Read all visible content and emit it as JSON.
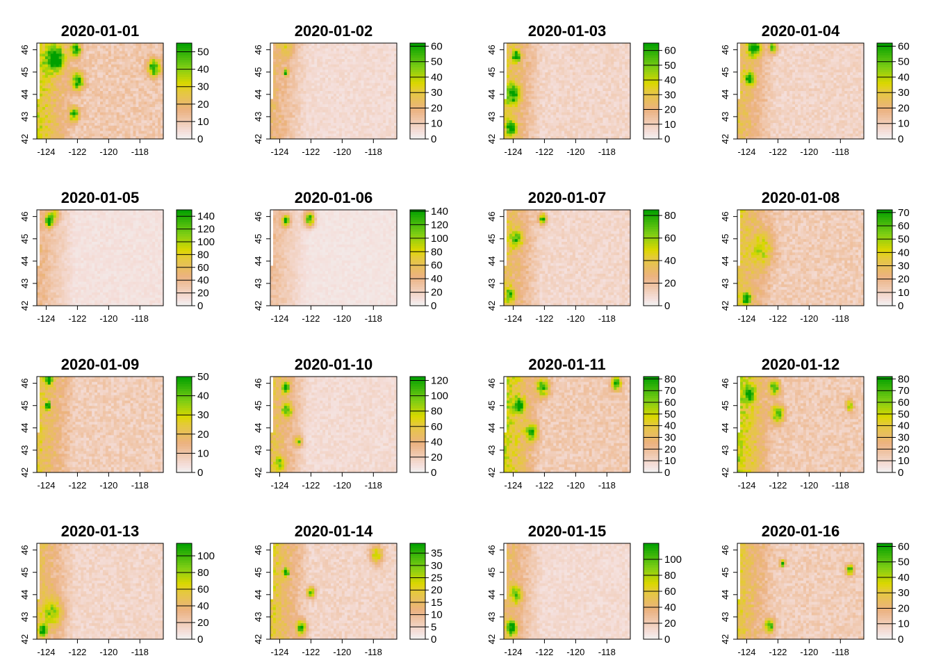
{
  "figure": {
    "x_ticks": [
      "-124",
      "-122",
      "-120",
      "-118"
    ],
    "y_ticks": [
      "42",
      "43",
      "44",
      "45",
      "46"
    ]
  },
  "chart_data": [
    {
      "type": "heatmap",
      "title": "2020-01-01",
      "xlim": [
        -124.6,
        -116.5
      ],
      "ylim": [
        42,
        46.3
      ],
      "colorbar": {
        "min": 0,
        "max": 55,
        "ticks": [
          0,
          10,
          20,
          30,
          40,
          50
        ],
        "labels": [
          "0",
          "10",
          "20",
          "30",
          "40",
          "50"
        ]
      },
      "hotspots": [
        {
          "lon": -123.4,
          "lat": 45.6,
          "value": 45,
          "spread": 0.7
        },
        {
          "lon": -122.1,
          "lat": 46.0,
          "value": 50,
          "spread": 0.4
        },
        {
          "lon": -122.0,
          "lat": 44.6,
          "value": 45,
          "spread": 0.5
        },
        {
          "lon": -122.2,
          "lat": 43.1,
          "value": 40,
          "spread": 0.4
        },
        {
          "lon": -117.1,
          "lat": 45.2,
          "value": 45,
          "spread": 0.5
        }
      ],
      "base": 10,
      "west_strip_value": 20
    },
    {
      "type": "heatmap",
      "title": "2020-01-02",
      "xlim": [
        -124.6,
        -116.5
      ],
      "ylim": [
        42,
        46.3
      ],
      "colorbar": {
        "min": 0,
        "max": 62,
        "ticks": [
          0,
          10,
          20,
          30,
          40,
          50,
          60
        ],
        "labels": [
          "0",
          "10",
          "20",
          "30",
          "40",
          "50",
          "60"
        ]
      },
      "hotspots": [
        {
          "lon": -123.6,
          "lat": 45.0,
          "value": 45,
          "spread": 0.2
        },
        {
          "lon": -123.5,
          "lat": 46.1,
          "value": 15,
          "spread": 0.6
        }
      ],
      "base": 6,
      "west_strip_value": 14
    },
    {
      "type": "heatmap",
      "title": "2020-01-03",
      "xlim": [
        -124.6,
        -116.5
      ],
      "ylim": [
        42,
        46.3
      ],
      "colorbar": {
        "min": 0,
        "max": 65,
        "ticks": [
          0,
          10,
          20,
          30,
          40,
          50,
          60
        ],
        "labels": [
          "0",
          "10",
          "20",
          "30",
          "40",
          "50",
          "60"
        ]
      },
      "hotspots": [
        {
          "lon": -123.8,
          "lat": 45.7,
          "value": 55,
          "spread": 0.3
        },
        {
          "lon": -124.0,
          "lat": 44.0,
          "value": 40,
          "spread": 0.6
        },
        {
          "lon": -124.1,
          "lat": 42.5,
          "value": 55,
          "spread": 0.4
        }
      ],
      "base": 8,
      "west_strip_value": 20
    },
    {
      "type": "heatmap",
      "title": "2020-01-04",
      "xlim": [
        -124.6,
        -116.5
      ],
      "ylim": [
        42,
        46.3
      ],
      "colorbar": {
        "min": 0,
        "max": 62,
        "ticks": [
          0,
          10,
          20,
          30,
          40,
          50,
          60
        ],
        "labels": [
          "0",
          "10",
          "20",
          "30",
          "40",
          "50",
          "60"
        ]
      },
      "hotspots": [
        {
          "lon": -123.5,
          "lat": 46.1,
          "value": 50,
          "spread": 0.5
        },
        {
          "lon": -122.3,
          "lat": 46.1,
          "value": 50,
          "spread": 0.3
        },
        {
          "lon": -123.8,
          "lat": 44.7,
          "value": 40,
          "spread": 0.4
        }
      ],
      "base": 8,
      "west_strip_value": 18
    },
    {
      "type": "heatmap",
      "title": "2020-01-05",
      "xlim": [
        -124.6,
        -116.5
      ],
      "ylim": [
        42,
        46.3
      ],
      "colorbar": {
        "min": 0,
        "max": 150,
        "ticks": [
          0,
          20,
          40,
          60,
          80,
          100,
          120,
          140
        ],
        "labels": [
          "0",
          "20",
          "40",
          "60",
          "80",
          "100",
          "120",
          "140"
        ]
      },
      "hotspots": [
        {
          "lon": -123.8,
          "lat": 45.8,
          "value": 140,
          "spread": 0.3
        },
        {
          "lon": -123.5,
          "lat": 46.1,
          "value": 60,
          "spread": 0.4
        }
      ],
      "base": 10,
      "west_strip_value": 30
    },
    {
      "type": "heatmap",
      "title": "2020-01-06",
      "xlim": [
        -124.6,
        -116.5
      ],
      "ylim": [
        42,
        46.3
      ],
      "colorbar": {
        "min": 0,
        "max": 142,
        "ticks": [
          0,
          20,
          40,
          60,
          80,
          100,
          120,
          140
        ],
        "labels": [
          "0",
          "20",
          "40",
          "60",
          "80",
          "100",
          "120",
          "140"
        ]
      },
      "hotspots": [
        {
          "lon": -123.6,
          "lat": 45.8,
          "value": 110,
          "spread": 0.3
        },
        {
          "lon": -122.1,
          "lat": 45.9,
          "value": 130,
          "spread": 0.4
        }
      ],
      "base": 8,
      "west_strip_value": 25
    },
    {
      "type": "heatmap",
      "title": "2020-01-07",
      "xlim": [
        -124.6,
        -116.5
      ],
      "ylim": [
        42,
        46.3
      ],
      "colorbar": {
        "min": 0,
        "max": 85,
        "ticks": [
          0,
          20,
          40,
          60,
          80
        ],
        "labels": [
          "0",
          "20",
          "40",
          "60",
          "80"
        ]
      },
      "hotspots": [
        {
          "lon": -122.1,
          "lat": 45.9,
          "value": 70,
          "spread": 0.3
        },
        {
          "lon": -123.8,
          "lat": 45.0,
          "value": 45,
          "spread": 0.5
        },
        {
          "lon": -124.2,
          "lat": 42.5,
          "value": 45,
          "spread": 0.4
        }
      ],
      "base": 10,
      "west_strip_value": 25
    },
    {
      "type": "heatmap",
      "title": "2020-01-08",
      "xlim": [
        -124.6,
        -116.5
      ],
      "ylim": [
        42,
        46.3
      ],
      "colorbar": {
        "min": 0,
        "max": 72,
        "ticks": [
          0,
          10,
          20,
          30,
          40,
          50,
          60,
          70
        ],
        "labels": [
          "0",
          "10",
          "20",
          "30",
          "40",
          "50",
          "60",
          "70"
        ]
      },
      "hotspots": [
        {
          "lon": -124.0,
          "lat": 42.3,
          "value": 65,
          "spread": 0.3
        },
        {
          "lon": -123.0,
          "lat": 44.5,
          "value": 25,
          "spread": 1.0
        }
      ],
      "base": 12,
      "west_strip_value": 20
    },
    {
      "type": "heatmap",
      "title": "2020-01-09",
      "xlim": [
        -124.6,
        -116.5
      ],
      "ylim": [
        42,
        46.3
      ],
      "colorbar": {
        "min": 0,
        "max": 50,
        "ticks": [
          0,
          10,
          20,
          30,
          40,
          50
        ],
        "labels": [
          "0",
          "10",
          "20",
          "30",
          "40",
          "50"
        ]
      },
      "hotspots": [
        {
          "lon": -123.8,
          "lat": 46.2,
          "value": 45,
          "spread": 0.3
        },
        {
          "lon": -123.9,
          "lat": 45.0,
          "value": 45,
          "spread": 0.2
        }
      ],
      "base": 8,
      "west_strip_value": 15
    },
    {
      "type": "heatmap",
      "title": "2020-01-10",
      "xlim": [
        -124.6,
        -116.5
      ],
      "ylim": [
        42,
        46.3
      ],
      "colorbar": {
        "min": 0,
        "max": 125,
        "ticks": [
          0,
          20,
          40,
          60,
          80,
          100,
          120
        ],
        "labels": [
          "0",
          "20",
          "40",
          "60",
          "80",
          "100",
          "120"
        ]
      },
      "hotspots": [
        {
          "lon": -123.6,
          "lat": 45.8,
          "value": 100,
          "spread": 0.3
        },
        {
          "lon": -123.5,
          "lat": 44.8,
          "value": 80,
          "spread": 0.4
        },
        {
          "lon": -122.8,
          "lat": 43.4,
          "value": 70,
          "spread": 0.3
        },
        {
          "lon": -124.0,
          "lat": 42.4,
          "value": 50,
          "spread": 0.4
        }
      ],
      "base": 12,
      "west_strip_value": 40
    },
    {
      "type": "heatmap",
      "title": "2020-01-11",
      "xlim": [
        -124.6,
        -116.5
      ],
      "ylim": [
        42,
        46.3
      ],
      "colorbar": {
        "min": 0,
        "max": 82,
        "ticks": [
          0,
          10,
          20,
          30,
          40,
          50,
          60,
          70,
          80
        ],
        "labels": [
          "0",
          "10",
          "20",
          "30",
          "40",
          "50",
          "60",
          "70",
          "80"
        ]
      },
      "hotspots": [
        {
          "lon": -122.1,
          "lat": 45.8,
          "value": 60,
          "spread": 0.5
        },
        {
          "lon": -123.6,
          "lat": 45.0,
          "value": 55,
          "spread": 0.4
        },
        {
          "lon": -122.8,
          "lat": 43.8,
          "value": 50,
          "spread": 0.5
        },
        {
          "lon": -117.4,
          "lat": 46.0,
          "value": 60,
          "spread": 0.4
        }
      ],
      "base": 14,
      "west_strip_value": 35
    },
    {
      "type": "heatmap",
      "title": "2020-01-12",
      "xlim": [
        -124.6,
        -116.5
      ],
      "ylim": [
        42,
        46.3
      ],
      "colorbar": {
        "min": 0,
        "max": 82,
        "ticks": [
          0,
          10,
          20,
          30,
          40,
          50,
          60,
          70,
          80
        ],
        "labels": [
          "0",
          "10",
          "20",
          "30",
          "40",
          "50",
          "60",
          "70",
          "80"
        ]
      },
      "hotspots": [
        {
          "lon": -122.2,
          "lat": 45.8,
          "value": 65,
          "spread": 0.4
        },
        {
          "lon": -122.0,
          "lat": 44.6,
          "value": 60,
          "spread": 0.5
        },
        {
          "lon": -123.8,
          "lat": 45.5,
          "value": 50,
          "spread": 0.4
        },
        {
          "lon": -117.4,
          "lat": 45.0,
          "value": 50,
          "spread": 0.3
        }
      ],
      "base": 14,
      "west_strip_value": 35
    },
    {
      "type": "heatmap",
      "title": "2020-01-13",
      "xlim": [
        -124.6,
        -116.5
      ],
      "ylim": [
        42,
        46.3
      ],
      "colorbar": {
        "min": 0,
        "max": 115,
        "ticks": [
          0,
          20,
          40,
          60,
          80,
          100
        ],
        "labels": [
          "0",
          "20",
          "40",
          "60",
          "80",
          "100"
        ]
      },
      "hotspots": [
        {
          "lon": -124.2,
          "lat": 42.4,
          "value": 110,
          "spread": 0.3
        },
        {
          "lon": -123.6,
          "lat": 43.2,
          "value": 50,
          "spread": 0.8
        }
      ],
      "base": 14,
      "west_strip_value": 30
    },
    {
      "type": "heatmap",
      "title": "2020-01-14",
      "xlim": [
        -124.6,
        -116.5
      ],
      "ylim": [
        42,
        46.3
      ],
      "colorbar": {
        "min": 0,
        "max": 39,
        "ticks": [
          0,
          5,
          10,
          15,
          20,
          25,
          30,
          35
        ],
        "labels": [
          "0",
          "5",
          "10",
          "15",
          "20",
          "25",
          "30",
          "35"
        ]
      },
      "hotspots": [
        {
          "lon": -123.6,
          "lat": 45.0,
          "value": 35,
          "spread": 0.2
        },
        {
          "lon": -122.0,
          "lat": 44.1,
          "value": 30,
          "spread": 0.3
        },
        {
          "lon": -122.6,
          "lat": 42.5,
          "value": 30,
          "spread": 0.4
        },
        {
          "lon": -117.8,
          "lat": 45.8,
          "value": 20,
          "spread": 0.5
        }
      ],
      "base": 5,
      "west_strip_value": 14
    },
    {
      "type": "heatmap",
      "title": "2020-01-15",
      "xlim": [
        -124.6,
        -116.5
      ],
      "ylim": [
        42,
        46.3
      ],
      "colorbar": {
        "min": 0,
        "max": 120,
        "ticks": [
          0,
          20,
          40,
          60,
          80,
          100
        ],
        "labels": [
          "0",
          "20",
          "40",
          "60",
          "80",
          "100"
        ]
      },
      "hotspots": [
        {
          "lon": -124.1,
          "lat": 42.5,
          "value": 110,
          "spread": 0.4
        },
        {
          "lon": -123.8,
          "lat": 44.0,
          "value": 60,
          "spread": 0.5
        }
      ],
      "base": 12,
      "west_strip_value": 30
    },
    {
      "type": "heatmap",
      "title": "2020-01-16",
      "xlim": [
        -124.6,
        -116.5
      ],
      "ylim": [
        42,
        46.3
      ],
      "colorbar": {
        "min": 0,
        "max": 62,
        "ticks": [
          0,
          10,
          20,
          30,
          40,
          50,
          60
        ],
        "labels": [
          "0",
          "10",
          "20",
          "30",
          "40",
          "50",
          "60"
        ]
      },
      "hotspots": [
        {
          "lon": -121.7,
          "lat": 45.4,
          "value": 55,
          "spread": 0.2
        },
        {
          "lon": -117.4,
          "lat": 45.1,
          "value": 45,
          "spread": 0.3
        },
        {
          "lon": -122.5,
          "lat": 42.6,
          "value": 40,
          "spread": 0.4
        }
      ],
      "base": 10,
      "west_strip_value": 18
    }
  ]
}
